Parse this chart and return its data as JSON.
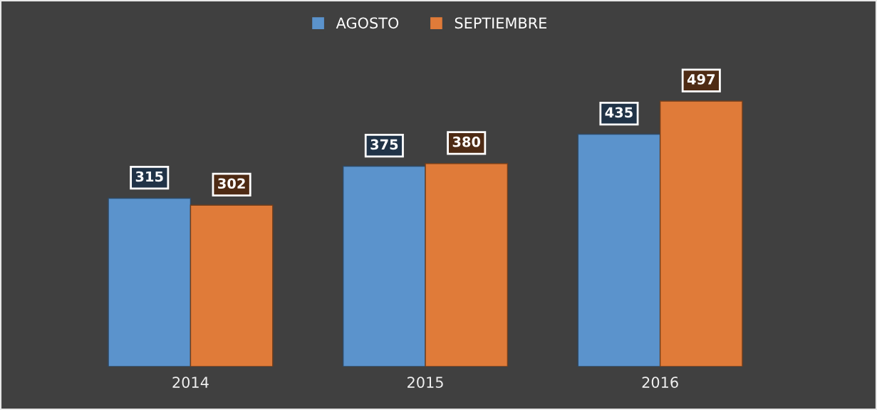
{
  "chart_data": {
    "type": "bar",
    "categories": [
      "2014",
      "2015",
      "2016"
    ],
    "series": [
      {
        "name": "AGOSTO",
        "color": "#5b93cc",
        "values": [
          315,
          375,
          435
        ]
      },
      {
        "name": "SEPTIEMBRE",
        "color": "#e07b39",
        "values": [
          302,
          380,
          497
        ]
      }
    ],
    "data_labels": true,
    "legend": "top",
    "grid": false
  }
}
